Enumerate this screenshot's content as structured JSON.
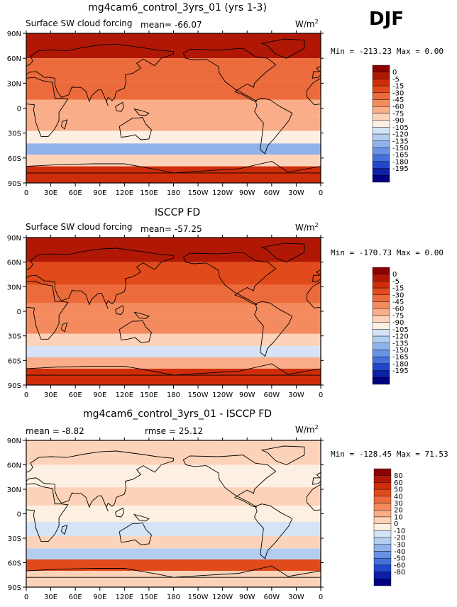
{
  "season": "DJF",
  "chart_data": [
    {
      "type": "heatmap",
      "title": "mg4cam6_control_3yrs_01 (yrs 1-3)",
      "subtitle_left": "Surface SW cloud forcing",
      "mean_text": "mean=  -66.07",
      "units_text": "W/m",
      "units_exp": "2",
      "minmax_text": "Min = -213.23 Max =   0.00",
      "xlabel": "",
      "ylabel": "",
      "x_ticks": [
        "0",
        "30E",
        "60E",
        "90E",
        "120E",
        "150E",
        "180",
        "150W",
        "120W",
        "90W",
        "60W",
        "30W",
        "0"
      ],
      "y_ticks": [
        "90N",
        "60N",
        "30N",
        "0",
        "30S",
        "60S",
        "90S"
      ],
      "xlim": [
        0,
        360
      ],
      "ylim": [
        -90,
        90
      ],
      "colorbar_levels": [
        "0",
        "-5",
        "-15",
        "-30",
        "-45",
        "-60",
        "-75",
        "-90",
        "-105",
        "-120",
        "-135",
        "-150",
        "-165",
        "-180",
        "-195"
      ],
      "colorbar_colors": [
        "#8b0000",
        "#b01805",
        "#cf2d0a",
        "#e14a1a",
        "#ec6b3c",
        "#f38b5f",
        "#f9ad88",
        "#fcd3b8",
        "#fdf0e3",
        "#d4e3f6",
        "#b3cdf0",
        "#8fb2ea",
        "#6a92e4",
        "#4370dc",
        "#2146cc",
        "#0c1fa8",
        "#000080"
      ],
      "lat_bands": [
        {
          "lat": 75,
          "value": -5
        },
        {
          "lat": 45,
          "value": -40
        },
        {
          "lat": 20,
          "value": -45
        },
        {
          "lat": 0,
          "value": -75
        },
        {
          "lat": -20,
          "value": -70
        },
        {
          "lat": -35,
          "value": -95
        },
        {
          "lat": -50,
          "value": -150
        },
        {
          "lat": -62,
          "value": -90
        },
        {
          "lat": -78,
          "value": -10
        }
      ]
    },
    {
      "type": "heatmap",
      "title": "ISCCP FD",
      "subtitle_left": "Surface SW cloud forcing",
      "mean_text": "mean=  -57.25",
      "units_text": "W/m",
      "units_exp": "2",
      "minmax_text": "Min = -170.73 Max =   0.00",
      "xlabel": "",
      "ylabel": "",
      "x_ticks": [
        "0",
        "30E",
        "60E",
        "90E",
        "120E",
        "150E",
        "180",
        "150W",
        "120W",
        "90W",
        "60W",
        "30W",
        "0"
      ],
      "y_ticks": [
        "90N",
        "60N",
        "30N",
        "0",
        "30S",
        "60S",
        "90S"
      ],
      "xlim": [
        0,
        360
      ],
      "ylim": [
        -90,
        90
      ],
      "colorbar_levels": [
        "0",
        "-5",
        "-15",
        "-30",
        "-45",
        "-60",
        "-75",
        "-90",
        "-105",
        "-120",
        "-135",
        "-150",
        "-165",
        "-180",
        "-195"
      ],
      "colorbar_colors": [
        "#8b0000",
        "#b01805",
        "#cf2d0a",
        "#e14a1a",
        "#ec6b3c",
        "#f38b5f",
        "#f9ad88",
        "#fcd3b8",
        "#fdf0e3",
        "#d4e3f6",
        "#b3cdf0",
        "#8fb2ea",
        "#6a92e4",
        "#4370dc",
        "#2146cc",
        "#0c1fa8",
        "#000080"
      ],
      "lat_bands": [
        {
          "lat": 75,
          "value": -5
        },
        {
          "lat": 45,
          "value": -25
        },
        {
          "lat": 20,
          "value": -45
        },
        {
          "lat": 0,
          "value": -60
        },
        {
          "lat": -20,
          "value": -60
        },
        {
          "lat": -35,
          "value": -85
        },
        {
          "lat": -50,
          "value": -120
        },
        {
          "lat": -62,
          "value": -70
        },
        {
          "lat": -78,
          "value": -10
        }
      ]
    },
    {
      "type": "heatmap",
      "title": "mg4cam6_control_3yrs_01 - ISCCP FD",
      "subtitle_left": "mean =  -8.82",
      "mean_text": "rmse =  25.12",
      "units_text": "W/m",
      "units_exp": "2",
      "minmax_text": "Min = -128.45 Max =  71.53",
      "xlabel": "",
      "ylabel": "",
      "x_ticks": [
        "0",
        "30E",
        "60E",
        "90E",
        "120E",
        "150E",
        "180",
        "150W",
        "120W",
        "90W",
        "60W",
        "30W",
        "0"
      ],
      "y_ticks": [
        "90N",
        "60N",
        "30N",
        "0",
        "30S",
        "60S",
        "90S"
      ],
      "xlim": [
        0,
        360
      ],
      "ylim": [
        -90,
        90
      ],
      "colorbar_levels": [
        "80",
        "60",
        "50",
        "40",
        "30",
        "20",
        "10",
        "0",
        "-10",
        "-20",
        "-30",
        "-40",
        "-50",
        "-60",
        "-80"
      ],
      "colorbar_colors": [
        "#8b0000",
        "#b01805",
        "#cf2d0a",
        "#e14a1a",
        "#ec6b3c",
        "#f38b5f",
        "#f9ad88",
        "#fcd3b8",
        "#fdf0e3",
        "#d4e3f6",
        "#b3cdf0",
        "#8fb2ea",
        "#6a92e4",
        "#4370dc",
        "#2146cc",
        "#0c1fa8",
        "#000080"
      ],
      "lat_bands": [
        {
          "lat": 75,
          "value": 5
        },
        {
          "lat": 45,
          "value": -5
        },
        {
          "lat": 20,
          "value": 5
        },
        {
          "lat": 0,
          "value": -10
        },
        {
          "lat": -20,
          "value": -15
        },
        {
          "lat": -35,
          "value": 5
        },
        {
          "lat": -50,
          "value": -25
        },
        {
          "lat": -62,
          "value": 45
        },
        {
          "lat": -78,
          "value": 5
        }
      ]
    }
  ]
}
